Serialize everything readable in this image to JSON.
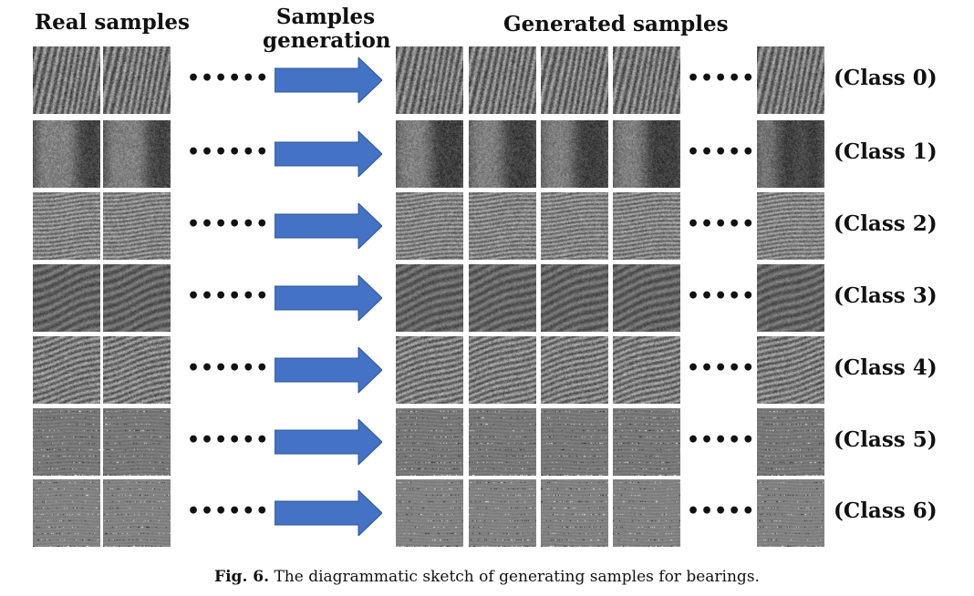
{
  "headers": {
    "real": "Real samples",
    "generation_line1": "Samples",
    "generation_line2": "generation",
    "generated": "Generated samples"
  },
  "ellipsis": "••••••",
  "arrow_color": "#4472c4",
  "rows": [
    {
      "label": "(Class 0)",
      "texture": "diagonal-streaks"
    },
    {
      "label": "(Class 1)",
      "texture": "speckled-noise"
    },
    {
      "label": "(Class 2)",
      "texture": "fine-wavy-bands"
    },
    {
      "label": "(Class 3)",
      "texture": "dark-ripples"
    },
    {
      "label": "(Class 4)",
      "texture": "coarse-wavy-bands"
    },
    {
      "label": "(Class 5)",
      "texture": "horizontal-dashes"
    },
    {
      "label": "(Class 6)",
      "texture": "sparse-dashes"
    }
  ],
  "caption": {
    "label": "Fig. 6.",
    "text": "The diagrammatic sketch of generating samples for bearings."
  }
}
